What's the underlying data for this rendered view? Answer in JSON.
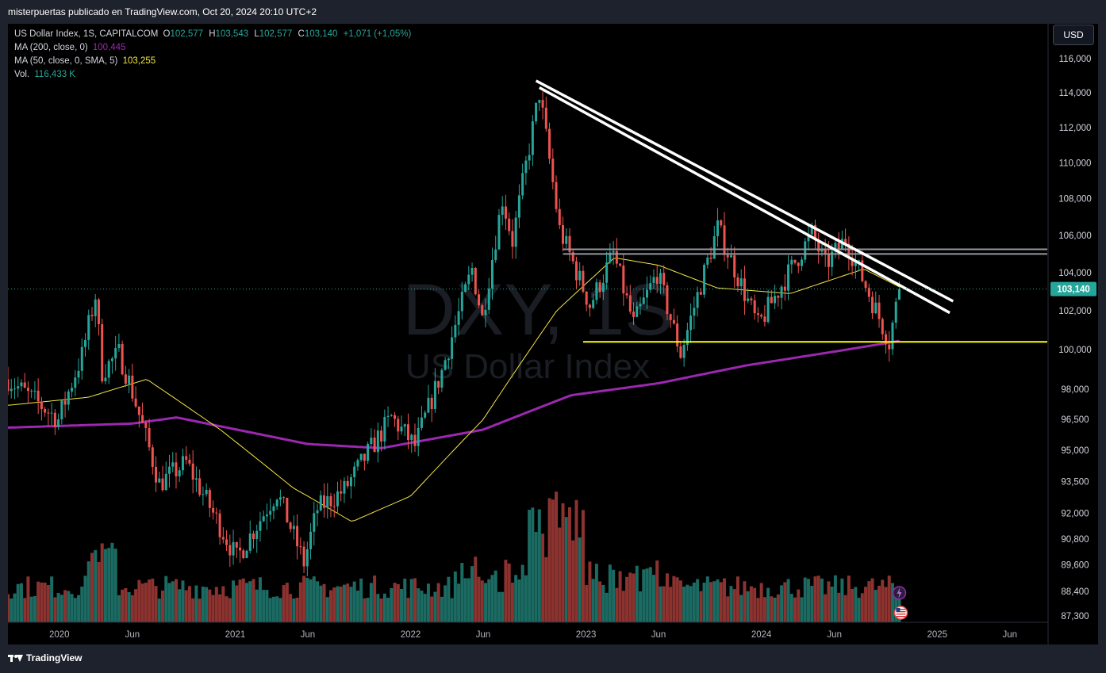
{
  "header": {
    "published_line": "misterpuertas publicado en TradingView.com, Oct 20, 2024 20:10 UTC+2"
  },
  "legend": {
    "symbol": "US Dollar Index, 1S, CAPITALCOM",
    "open_key": "O",
    "open": "102,577",
    "high_key": "H",
    "high": "103,543",
    "low_key": "L",
    "low": "102,577",
    "close_key": "C",
    "close": "103,140",
    "change": "+1,071 (+1,05%)",
    "ma200_label": "MA (200, close, 0)",
    "ma200_value": "100,445",
    "ma50_label": "MA (50, close, 0, SMA, 5)",
    "ma50_value": "103,255",
    "vol_label": "Vol.",
    "vol_value": "116,433 K"
  },
  "currency_button": "USD",
  "watermark": {
    "ticker": "DXY, 1S",
    "name": "US Dollar Index"
  },
  "footer": {
    "logo_text": "TradingView"
  },
  "colors": {
    "background": "#000000",
    "up": "#26a69a",
    "down": "#ef5350",
    "ma200": "#9c27b0",
    "ma50": "#f5e642",
    "support": "#ffff00",
    "resistance": "#9598a1",
    "trendline": "#ffffff",
    "last_price_tag": "#26a69a"
  },
  "icons": [
    "lightning-event-icon",
    "us-flag-economic-event-icon"
  ],
  "chart_data": {
    "type": "candlestick",
    "timeframe": "1W",
    "y_scale": "log",
    "x_tick_labels": [
      "2020",
      "Jun",
      "2021",
      "Jun",
      "2022",
      "Jun",
      "2023",
      "Jun",
      "2024",
      "Jun",
      "2025",
      "Jun"
    ],
    "x_tick_dates": [
      "2020-01-01",
      "2020-06-01",
      "2021-01-01",
      "2021-06-01",
      "2022-01-01",
      "2022-06-01",
      "2023-01-01",
      "2023-06-01",
      "2024-01-01",
      "2024-06-01",
      "2025-01-01",
      "2025-06-01"
    ],
    "x_range": [
      "2019-09-16",
      "2025-08-18"
    ],
    "y_tick_labels": [
      "116,000",
      "114,000",
      "112,000",
      "110,000",
      "108,000",
      "106,000",
      "104,000",
      "102,000",
      "100,000",
      "98,000",
      "96,500",
      "95,000",
      "93,500",
      "92,000",
      "90,800",
      "89,600",
      "88,400",
      "87,300"
    ],
    "y_ticks": [
      116,
      114,
      112,
      110,
      108,
      106,
      104,
      102,
      100,
      98,
      96.5,
      95,
      93.5,
      92,
      90.8,
      89.6,
      88.4,
      87.3
    ],
    "last_price_label": "103,140",
    "last_price": 103.14,
    "price_anchors": [
      [
        "2019-09-16",
        98.5
      ],
      [
        "2019-12-30",
        96.5
      ],
      [
        "2020-02-17",
        99.7
      ],
      [
        "2020-03-16",
        102.8
      ],
      [
        "2020-03-30",
        98.9
      ],
      [
        "2020-05-04",
        99.8
      ],
      [
        "2020-05-25",
        98.4
      ],
      [
        "2020-07-27",
        93.4
      ],
      [
        "2020-09-21",
        94.4
      ],
      [
        "2020-11-02",
        92.6
      ],
      [
        "2021-01-04",
        89.9
      ],
      [
        "2021-03-29",
        93.0
      ],
      [
        "2021-05-24",
        89.7
      ],
      [
        "2021-06-21",
        92.2
      ],
      [
        "2021-08-16",
        93.1
      ],
      [
        "2021-11-22",
        96.6
      ],
      [
        "2022-01-10",
        95.2
      ],
      [
        "2022-03-07",
        98.9
      ],
      [
        "2022-05-09",
        104.2
      ],
      [
        "2022-05-30",
        101.6
      ],
      [
        "2022-07-11",
        108.0
      ],
      [
        "2022-08-01",
        105.7
      ],
      [
        "2022-09-26",
        114.0
      ],
      [
        "2022-11-07",
        106.3
      ],
      [
        "2023-01-09",
        102.3
      ],
      [
        "2023-02-27",
        105.0
      ],
      [
        "2023-04-10",
        101.3
      ],
      [
        "2023-05-29",
        104.0
      ],
      [
        "2023-07-17",
        99.8
      ],
      [
        "2023-10-02",
        106.4
      ],
      [
        "2023-12-25",
        101.2
      ],
      [
        "2024-04-15",
        106.1
      ],
      [
        "2024-05-13",
        104.4
      ],
      [
        "2024-06-24",
        105.8
      ],
      [
        "2024-09-23",
        100.4
      ],
      [
        "2024-10-14",
        103.14
      ]
    ],
    "volume_label": "Vol.",
    "ma200_anchors": [
      [
        "2019-09-16",
        96.1
      ],
      [
        "2020-06-01",
        96.3
      ],
      [
        "2020-09-01",
        96.6
      ],
      [
        "2021-06-01",
        95.3
      ],
      [
        "2021-11-01",
        95.1
      ],
      [
        "2022-06-01",
        96.0
      ],
      [
        "2022-12-01",
        97.7
      ],
      [
        "2023-06-01",
        98.3
      ],
      [
        "2023-12-01",
        99.2
      ],
      [
        "2024-06-01",
        99.9
      ],
      [
        "2024-10-14",
        100.445
      ]
    ],
    "ma50_anchors": [
      [
        "2019-09-16",
        97.2
      ],
      [
        "2020-03-01",
        97.6
      ],
      [
        "2020-07-01",
        98.5
      ],
      [
        "2020-12-01",
        96.0
      ],
      [
        "2021-05-01",
        93.2
      ],
      [
        "2021-09-01",
        91.6
      ],
      [
        "2022-01-01",
        92.8
      ],
      [
        "2022-06-01",
        96.5
      ],
      [
        "2022-11-01",
        102.0
      ],
      [
        "2023-03-01",
        104.8
      ],
      [
        "2023-06-01",
        104.4
      ],
      [
        "2023-10-01",
        103.2
      ],
      [
        "2024-03-01",
        102.9
      ],
      [
        "2024-08-01",
        104.2
      ],
      [
        "2024-10-14",
        103.255
      ]
    ],
    "drawings": {
      "support_line": {
        "from": "2022-12-26",
        "to": "2025-08-18",
        "price": 100.4
      },
      "resistance_lines": [
        {
          "from": "2022-11-14",
          "to": "2025-08-18",
          "price": 105.0
        },
        {
          "from": "2022-11-14",
          "to": "2025-08-18",
          "price": 105.25
        }
      ],
      "trendlines": [
        {
          "from": [
            "2022-09-19",
            114.7
          ],
          "to": [
            "2025-02-03",
            102.5
          ]
        },
        {
          "from": [
            "2022-09-26",
            114.3
          ],
          "to": [
            "2025-01-27",
            101.9
          ]
        }
      ]
    },
    "grid": false,
    "legend_position": "top-left",
    "watermark": "DXY, 1S / US Dollar Index"
  }
}
